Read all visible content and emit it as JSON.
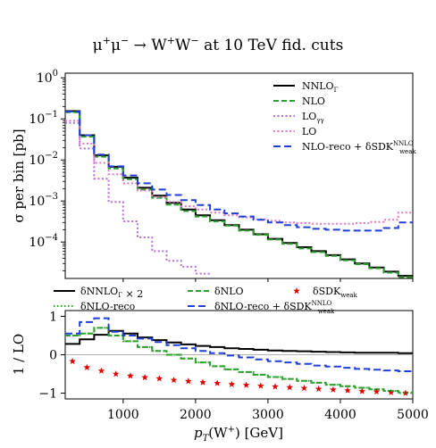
{
  "chart_data": [
    {
      "type": "line",
      "title_parts": [
        "μ",
        "+",
        "μ",
        "−",
        " → W",
        "+",
        "W",
        "−",
        " at 10 TeV fid. cuts"
      ],
      "ylabel": "σ per bin [pb]",
      "yscale": "log",
      "ylim": [
        1.3e-05,
        1.3
      ],
      "xlim": [
        200,
        5000
      ],
      "yticks": [
        {
          "base": "10",
          "exp": "0",
          "value": 1
        },
        {
          "base": "10",
          "exp": "−1",
          "value": 0.1
        },
        {
          "base": "10",
          "exp": "−2",
          "value": 0.01
        },
        {
          "base": "10",
          "exp": "−3",
          "value": 0.001
        },
        {
          "base": "10",
          "exp": "−4",
          "value": 0.0001
        }
      ],
      "x_edges": [
        200,
        400,
        600,
        800,
        1000,
        1200,
        1400,
        1600,
        1800,
        2000,
        2200,
        2400,
        2600,
        2800,
        3000,
        3200,
        3400,
        3600,
        3800,
        4000,
        4200,
        4400,
        4600,
        4800,
        5000
      ],
      "legend_position": "upper right",
      "series": [
        {
          "key": "nnlo",
          "name": "NNLO",
          "name_sub": "Γ",
          "color": "#000000",
          "dash": "",
          "values": [
            0.155,
            0.04,
            0.013,
            0.0068,
            0.0037,
            0.0021,
            0.00135,
            0.0009,
            0.00062,
            0.00045,
            0.00034,
            0.00026,
            0.0002,
            0.000155,
            0.00012,
            9.5e-05,
            7.5e-05,
            6e-05,
            4.8e-05,
            3.8e-05,
            3e-05,
            2.4e-05,
            1.9e-05,
            1.5e-05
          ]
        },
        {
          "key": "nlo",
          "name": "NLO",
          "color": "#2ca02c",
          "dash": "6,3",
          "values": [
            0.145,
            0.037,
            0.012,
            0.0062,
            0.0034,
            0.0019,
            0.0012,
            0.00082,
            0.00057,
            0.00042,
            0.00032,
            0.00025,
            0.00019,
            0.00015,
            0.000115,
            9e-05,
            7e-05,
            5.7e-05,
            4.6e-05,
            3.6e-05,
            2.9e-05,
            2.3e-05,
            1.8e-05,
            1.4e-05
          ]
        },
        {
          "key": "loyy",
          "name": "LO",
          "name_sub": "γγ",
          "color": "#b36fd6",
          "dash": "2,2.5",
          "values": [
            0.08,
            0.019,
            0.0035,
            0.00095,
            0.00032,
            0.00013,
            6e-05,
            3.5e-05,
            2.5e-05,
            1.7e-05,
            null,
            null,
            null,
            null,
            null,
            null,
            null,
            null,
            null,
            null,
            null,
            null,
            null,
            null
          ]
        },
        {
          "key": "lo",
          "name": "LO",
          "color": "#e377c2",
          "dash": "2,2.5",
          "values": [
            0.09,
            0.025,
            0.0085,
            0.0045,
            0.0027,
            0.0018,
            0.00125,
            0.00095,
            0.00075,
            0.00062,
            0.00052,
            0.00045,
            0.0004,
            0.00036,
            0.00033,
            0.0003,
            0.00029,
            0.00028,
            0.00028,
            0.00028,
            0.00029,
            0.00031,
            0.00035,
            0.00052
          ]
        },
        {
          "key": "nloreco",
          "name": "NLO-reco + δSDK",
          "name_sub": "weak",
          "name_sup": "NNLO",
          "color": "#1f3fd6",
          "dash": "8,4",
          "values": [
            0.15,
            0.04,
            0.0135,
            0.007,
            0.0042,
            0.0027,
            0.0019,
            0.0014,
            0.00105,
            0.0008,
            0.00062,
            0.0005,
            0.00042,
            0.00035,
            0.0003,
            0.00026,
            0.00023,
            0.00021,
            0.0002,
            0.00019,
            0.00019,
            0.00019,
            0.00022,
            0.0003
          ]
        }
      ]
    },
    {
      "type": "line",
      "ylabel": "1 / LO",
      "xlabel_main": "p",
      "xlabel_sub": "T",
      "xlabel_rest": "(W",
      "xlabel_sup": "+",
      "xlabel_end": ") [GeV]",
      "ylim": [
        -1.15,
        1.15
      ],
      "yticks": [
        -1,
        0,
        1
      ],
      "xticks": [
        1000,
        2000,
        3000,
        4000,
        5000
      ],
      "xlim": [
        200,
        5000
      ],
      "x_edges": [
        200,
        400,
        600,
        800,
        1000,
        1200,
        1400,
        1600,
        1800,
        2000,
        2200,
        2400,
        2600,
        2800,
        3000,
        3200,
        3400,
        3600,
        3800,
        4000,
        4200,
        4400,
        4600,
        4800,
        5000
      ],
      "legend_position": "above",
      "series": [
        {
          "key": "dnnlo",
          "name": "δNNLO",
          "name_sub": "Γ",
          "name_tail": " × 2",
          "color": "#000000",
          "dash": "",
          "style": "step",
          "values": [
            0.28,
            0.4,
            0.52,
            0.62,
            0.55,
            0.45,
            0.38,
            0.32,
            0.27,
            0.23,
            0.2,
            0.17,
            0.15,
            0.13,
            0.11,
            0.1,
            0.09,
            0.08,
            0.07,
            0.06,
            0.05,
            0.05,
            0.05,
            0.04
          ]
        },
        {
          "key": "dnlo",
          "name": "δNLO",
          "color": "#2ca02c",
          "dash": "6,3",
          "style": "step",
          "values": [
            0.5,
            0.55,
            0.7,
            0.5,
            0.35,
            0.2,
            0.1,
            0.0,
            -0.1,
            -0.2,
            -0.3,
            -0.38,
            -0.45,
            -0.52,
            -0.58,
            -0.63,
            -0.68,
            -0.73,
            -0.78,
            -0.82,
            -0.86,
            -0.9,
            -0.94,
            -0.98
          ]
        },
        {
          "key": "sdk",
          "name": "δSDK",
          "name_sub": "weak",
          "color": "#e00000",
          "style": "stars",
          "x": [
            300,
            500,
            700,
            900,
            1100,
            1300,
            1500,
            1700,
            1900,
            2100,
            2300,
            2500,
            2700,
            2900,
            3100,
            3300,
            3500,
            3700,
            3900,
            4100,
            4300,
            4500,
            4700,
            4900
          ],
          "values": [
            -0.17,
            -0.33,
            -0.42,
            -0.5,
            -0.55,
            -0.59,
            -0.62,
            -0.66,
            -0.69,
            -0.72,
            -0.74,
            -0.77,
            -0.79,
            -0.81,
            -0.83,
            -0.85,
            -0.87,
            -0.89,
            -0.91,
            -0.93,
            -0.95,
            -0.96,
            -0.98,
            -1.0
          ]
        },
        {
          "key": "dnloreco",
          "name": "δNLO-reco",
          "color": "#2ca02c",
          "dash": "1.5,2.5",
          "style": "step",
          "values": [
            0.5,
            0.55,
            0.7,
            0.5,
            0.35,
            0.2,
            0.1,
            0.0,
            -0.1,
            -0.2,
            -0.3,
            -0.38,
            -0.45,
            -0.52,
            -0.58,
            -0.63,
            -0.68,
            -0.73,
            -0.78,
            -0.82,
            -0.86,
            -0.9,
            -0.94,
            -1.0
          ]
        },
        {
          "key": "dnlorecosdk",
          "name": "δNLO-reco + δSDK",
          "name_sub": "weak",
          "name_sup": "NNLO",
          "color": "#1f3fd6",
          "dash": "8,4",
          "style": "step",
          "values": [
            0.55,
            0.85,
            0.95,
            0.6,
            0.5,
            0.42,
            0.33,
            0.25,
            0.17,
            0.1,
            0.04,
            -0.02,
            -0.07,
            -0.12,
            -0.17,
            -0.2,
            -0.24,
            -0.28,
            -0.31,
            -0.34,
            -0.37,
            -0.39,
            -0.41,
            -0.43
          ]
        }
      ]
    }
  ]
}
